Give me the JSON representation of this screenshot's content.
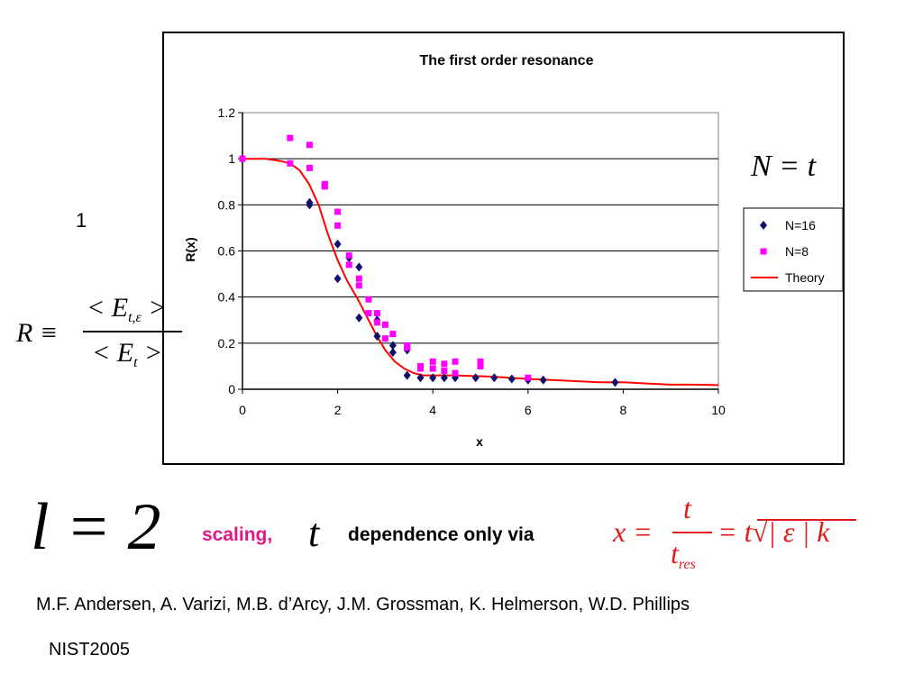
{
  "chart_data": {
    "type": "scatter",
    "title": "The first order resonance",
    "xlabel": "x",
    "ylabel": "R(x)",
    "xlim": [
      0,
      10
    ],
    "ylim": [
      0,
      1.2
    ],
    "xticks": [
      "0",
      "2",
      "4",
      "6",
      "8",
      "10"
    ],
    "yticks": [
      "0",
      "0.2",
      "0.4",
      "0.6",
      "0.8",
      "1",
      "1.2"
    ],
    "grid": "horizontal",
    "legend_position": "right",
    "series": [
      {
        "name": "N=16",
        "marker": "diamond",
        "color": "#10106b",
        "x": [
          0,
          1.41,
          1.41,
          2.0,
          2.0,
          2.24,
          2.45,
          2.45,
          2.83,
          2.83,
          3.16,
          3.16,
          3.46,
          3.46,
          3.74,
          4.0,
          4.24,
          4.47,
          4.9,
          5.29,
          5.66,
          6.0,
          6.32,
          7.83
        ],
        "y": [
          1.0,
          0.81,
          0.8,
          0.63,
          0.48,
          0.57,
          0.53,
          0.31,
          0.3,
          0.23,
          0.19,
          0.16,
          0.17,
          0.06,
          0.05,
          0.05,
          0.05,
          0.05,
          0.05,
          0.05,
          0.045,
          0.04,
          0.04,
          0.03
        ]
      },
      {
        "name": "N=8",
        "marker": "square",
        "color": "#ff00ff",
        "x": [
          0,
          1.0,
          1.0,
          1.41,
          1.41,
          1.73,
          1.73,
          2.0,
          2.0,
          2.24,
          2.24,
          2.45,
          2.45,
          2.65,
          2.65,
          2.83,
          2.83,
          3.0,
          3.0,
          3.16,
          3.46,
          3.46,
          3.74,
          3.74,
          4.0,
          4.0,
          4.24,
          4.24,
          4.47,
          4.47,
          5.0,
          5.0,
          6.0
        ],
        "y": [
          1.0,
          1.09,
          0.98,
          1.06,
          0.96,
          0.88,
          0.89,
          0.77,
          0.71,
          0.58,
          0.54,
          0.48,
          0.45,
          0.39,
          0.33,
          0.33,
          0.29,
          0.28,
          0.22,
          0.24,
          0.19,
          0.18,
          0.1,
          0.09,
          0.12,
          0.09,
          0.11,
          0.08,
          0.12,
          0.07,
          0.12,
          0.1,
          0.05
        ]
      },
      {
        "name": "Theory",
        "line": true,
        "color": "#ff0000",
        "x": [
          0,
          0.5,
          0.8,
          1.0,
          1.2,
          1.4,
          1.6,
          1.8,
          2.0,
          2.2,
          2.4,
          2.6,
          2.8,
          3.0,
          3.2,
          3.4,
          3.6,
          3.8,
          4.0,
          4.4,
          4.8,
          5.2,
          5.6,
          6.0,
          6.5,
          7.0,
          7.5,
          8.0,
          8.5,
          9.0,
          9.5,
          10.0
        ],
        "y": [
          1.0,
          1.0,
          0.99,
          0.98,
          0.95,
          0.89,
          0.8,
          0.67,
          0.56,
          0.47,
          0.4,
          0.32,
          0.24,
          0.17,
          0.12,
          0.09,
          0.07,
          0.06,
          0.06,
          0.06,
          0.058,
          0.055,
          0.05,
          0.045,
          0.04,
          0.035,
          0.03,
          0.03,
          0.025,
          0.02,
          0.02,
          0.018
        ]
      }
    ]
  },
  "legend": [
    {
      "label": "N=16"
    },
    {
      "label": "N=8"
    },
    {
      "label": "Theory"
    }
  ],
  "formulas": {
    "one": "1",
    "R_lhs": "R ≡",
    "R_num": "< E",
    "R_num_sub": "t,ε",
    "R_num_tail": " >",
    "R_den": "< E",
    "R_den_sub": "t",
    "R_den_tail": " >",
    "N_eq": "N = t",
    "l_eq": "l = 2",
    "t_symbol": "t",
    "x_lhs": "x =",
    "x_num": "t",
    "x_den": "t",
    "x_den_sub": "res",
    "x_rhs": "= t√| ε | k"
  },
  "texts": {
    "scaling": "scaling,",
    "dependence": "dependence  only via",
    "authors": "M.F. Andersen, A. Varizi, M.B. d’Arcy, J.M. Grossman, K. Helmerson, W.D. Phillips",
    "source": "NIST2005"
  }
}
